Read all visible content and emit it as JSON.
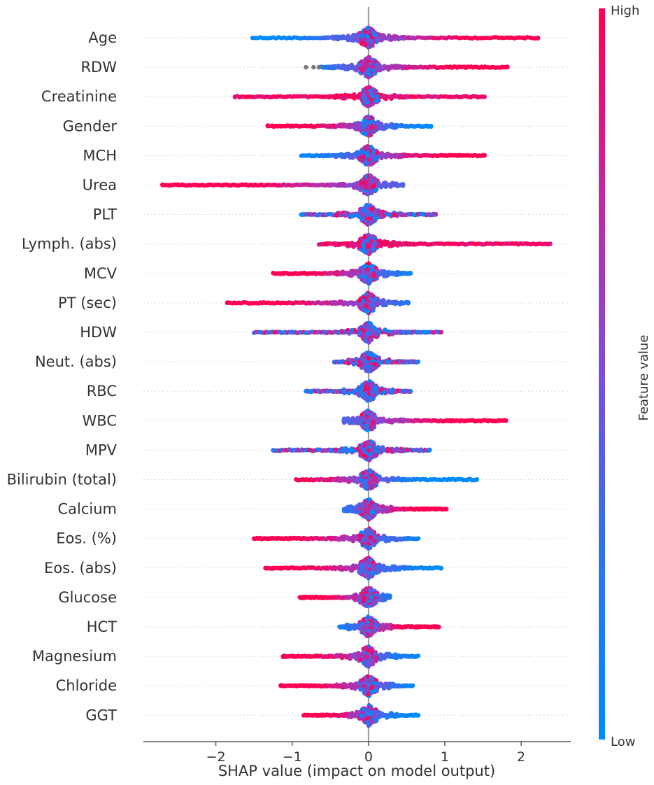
{
  "chart_data": {
    "type": "scatter",
    "subtype": "shap-beeswarm-summary",
    "xlabel": "SHAP value (impact on model output)",
    "xlim": [
      -2.95,
      2.65
    ],
    "xticks": [
      -2,
      -1,
      0,
      1,
      2
    ],
    "xtick_labels": [
      "−2",
      "−1",
      "0",
      "1",
      "2"
    ],
    "colorbar": {
      "label": "Feature value",
      "high_label": "High",
      "low_label": "Low",
      "low_color": "#008bfb",
      "high_color": "#ff0052"
    },
    "features": [
      {
        "name": "Age",
        "min": -1.52,
        "max": 2.22,
        "low_side": "neg",
        "density": 1.0,
        "outliers": [
          2.05,
          2.22,
          1.85,
          1.75
        ],
        "missing": []
      },
      {
        "name": "RDW",
        "min": -0.65,
        "max": 1.82,
        "low_side": "neg",
        "density": 1.05,
        "outliers": [
          1.82
        ],
        "missing": [
          -0.82,
          -0.72,
          -0.65
        ]
      },
      {
        "name": "Creatinine",
        "min": -1.75,
        "max": 1.52,
        "low_side": "none",
        "density": 0.85,
        "outliers": [
          -1.75,
          1.52,
          1.42
        ],
        "missing": []
      },
      {
        "name": "Gender",
        "min": -1.32,
        "max": 0.82,
        "low_side": "pos",
        "density": 0.8,
        "outliers": [
          -1.32,
          -1.2,
          0.82
        ],
        "missing": []
      },
      {
        "name": "MCH",
        "min": -0.88,
        "max": 1.52,
        "low_side": "neg",
        "density": 0.9,
        "outliers": [
          1.52,
          1.45
        ],
        "missing": []
      },
      {
        "name": "Urea",
        "min": -2.7,
        "max": 0.45,
        "low_side": "pos",
        "density": 0.7,
        "outliers": [
          -2.7,
          -2.6,
          -2.5,
          -2.25,
          -2.1,
          -1.9,
          -1.6,
          -1.5
        ],
        "missing": []
      },
      {
        "name": "PLT",
        "min": -0.88,
        "max": 0.88,
        "low_side": "mixed",
        "density": 0.75,
        "outliers": [
          -0.88,
          0.88
        ],
        "missing": []
      },
      {
        "name": "Lymph. (abs)",
        "min": -0.65,
        "max": 2.38,
        "low_side": "none",
        "density": 0.85,
        "outliers": [
          1.95,
          2.08,
          2.2,
          2.3,
          2.38
        ],
        "missing": []
      },
      {
        "name": "MCV",
        "min": -1.25,
        "max": 0.55,
        "low_side": "pos",
        "density": 0.75,
        "outliers": [
          0.55
        ],
        "missing": []
      },
      {
        "name": "PT (sec)",
        "min": -1.85,
        "max": 0.52,
        "low_side": "pos",
        "density": 0.7,
        "outliers": [
          -1.85,
          -1.75
        ],
        "missing": []
      },
      {
        "name": "HDW",
        "min": -1.5,
        "max": 0.95,
        "low_side": "mixed",
        "density": 0.6,
        "outliers": [
          0.35,
          0.45,
          0.55,
          0.65,
          0.75,
          0.85,
          0.95
        ],
        "missing": []
      },
      {
        "name": "Neut. (abs)",
        "min": -0.45,
        "max": 0.65,
        "low_side": "mixed",
        "density": 0.75,
        "outliers": [],
        "missing": []
      },
      {
        "name": "RBC",
        "min": -0.82,
        "max": 0.55,
        "low_side": "mixed",
        "density": 0.75,
        "outliers": [
          -0.82,
          -0.75,
          0.45,
          0.55
        ],
        "missing": []
      },
      {
        "name": "WBC",
        "min": -0.32,
        "max": 1.8,
        "low_side": "neg",
        "density": 0.85,
        "outliers": [
          1.7,
          1.8
        ],
        "missing": []
      },
      {
        "name": "MPV",
        "min": -1.25,
        "max": 0.8,
        "low_side": "mixed",
        "density": 0.75,
        "outliers": [
          -1.25,
          0.65,
          0.8
        ],
        "missing": []
      },
      {
        "name": "Bilirubin (total)",
        "min": -0.95,
        "max": 1.42,
        "low_side": "pos",
        "density": 0.65,
        "outliers": [
          0.5,
          0.75,
          1.15,
          1.42
        ],
        "missing": []
      },
      {
        "name": "Calcium",
        "min": -0.32,
        "max": 1.02,
        "low_side": "neg",
        "density": 0.8,
        "outliers": [
          0.95,
          1.02
        ],
        "missing": []
      },
      {
        "name": "Eos. (%)",
        "min": -1.5,
        "max": 0.65,
        "low_side": "pos",
        "density": 0.75,
        "outliers": [
          -1.5,
          -1.4,
          -1.3,
          -1.15,
          -1.05,
          0.55,
          0.65
        ],
        "missing": []
      },
      {
        "name": "Eos. (abs)",
        "min": -1.35,
        "max": 0.95,
        "low_side": "pos",
        "density": 0.75,
        "outliers": [
          -1.35,
          -1.25,
          -1.15,
          -1.05,
          -0.85,
          0.85,
          0.95
        ],
        "missing": []
      },
      {
        "name": "Glucose",
        "min": -0.9,
        "max": 0.28,
        "low_side": "pos",
        "density": 0.75,
        "outliers": [],
        "missing": []
      },
      {
        "name": "HCT",
        "min": -0.38,
        "max": 0.92,
        "low_side": "neg",
        "density": 0.8,
        "outliers": [
          0.82,
          0.92
        ],
        "missing": []
      },
      {
        "name": "Magnesium",
        "min": -1.12,
        "max": 0.65,
        "low_side": "pos",
        "density": 0.7,
        "outliers": [
          -1.12
        ],
        "missing": []
      },
      {
        "name": "Chloride",
        "min": -1.15,
        "max": 0.58,
        "low_side": "pos",
        "density": 0.7,
        "outliers": [
          -1.15,
          -0.95,
          -0.85,
          -0.75
        ],
        "missing": []
      },
      {
        "name": "GGT",
        "min": -0.85,
        "max": 0.65,
        "low_side": "pos",
        "density": 0.7,
        "outliers": [
          0.55,
          0.65
        ],
        "missing": []
      }
    ]
  }
}
